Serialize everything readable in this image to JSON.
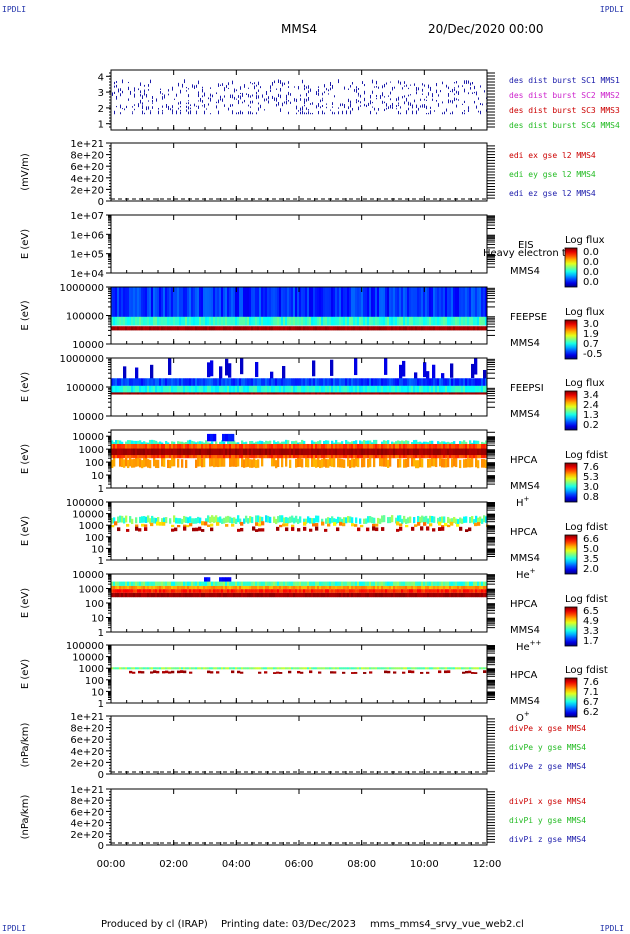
{
  "header": {
    "corner_label": "IPDLI",
    "spacecraft": "MMS4",
    "date": "20/Dec/2020 00:00"
  },
  "footer": {
    "produced_by": "Produced by cl (IRAP)",
    "printing_date": "Printing date: 03/Dec/2023",
    "filename": "mms_mms4_srvy_vue_web2.cl"
  },
  "time_axis": {
    "range_hours": [
      0,
      12
    ],
    "ticks": [
      {
        "hour": 0,
        "label": "00:00"
      },
      {
        "hour": 2,
        "label": "02:00"
      },
      {
        "hour": 4,
        "label": "04:00"
      },
      {
        "hour": 6,
        "label": "06:00"
      },
      {
        "hour": 8,
        "label": "08:00"
      },
      {
        "hour": 10,
        "label": "10:00"
      },
      {
        "hour": 12,
        "label": "12:00"
      }
    ]
  },
  "colors": {
    "mms1": "#1a1aaa",
    "mms2": "#cc22cc",
    "mms3": "#cc0000",
    "mms4": "#22bb22",
    "x": "#cc0000",
    "y": "#22bb22",
    "z": "#1a1aaa"
  },
  "chart_data": [
    {
      "type": "scatter",
      "panel": "burst",
      "ylabel": "",
      "yticks": [
        "1",
        "2",
        "3",
        "4"
      ],
      "ylim": [
        0.6,
        4.4
      ],
      "legend": [
        {
          "text": "des dist burst SC1 MMS1",
          "color": "mms1"
        },
        {
          "text": "des dist burst SC2 MMS2",
          "color": "mms2"
        },
        {
          "text": "des dist burst SC3 MMS3",
          "color": "mms3"
        },
        {
          "text": "des dist burst SC4 MMS4",
          "color": "mms4"
        }
      ]
    },
    {
      "type": "line",
      "panel": "edi-e",
      "ylabel": "(mV/m)",
      "yticks": [
        "0",
        "2e+20",
        "4e+20",
        "6e+20",
        "8e+20",
        "1e+21"
      ],
      "ylim": [
        0,
        1e+21
      ],
      "legend": [
        {
          "text": "edi ex gse l2 MMS4",
          "color": "x"
        },
        {
          "text": "edi ey gse l2 MMS4",
          "color": "y"
        },
        {
          "text": "edi ez gse l2 MMS4",
          "color": "z"
        }
      ]
    },
    {
      "type": "heatmap",
      "panel": "eis",
      "ylabel": "E (eV)",
      "yscale": "log",
      "yticks": [
        "1e+04",
        "1e+05",
        "1e+06",
        "1e+07"
      ],
      "ylim": [
        10000,
        10000000
      ],
      "instrument_lines": [
        "EIS",
        "MMS4"
      ],
      "overlay_text": "Heavy electron tof",
      "colorbar_title": "Log flux",
      "colorbar_ticks": [
        "0.0",
        "0.0",
        "0.0",
        "0.0"
      ]
    },
    {
      "type": "heatmap",
      "panel": "feepse",
      "ylabel": "E (eV)",
      "yscale": "log",
      "yticks": [
        "10000",
        "100000",
        "1000000"
      ],
      "ylim": [
        10000,
        1000000
      ],
      "instrument_lines": [
        "FEEPSE",
        "MMS4"
      ],
      "colorbar_title": "Log flux",
      "colorbar_ticks": [
        "3.0",
        "1.9",
        "0.7",
        "-0.5"
      ]
    },
    {
      "type": "heatmap",
      "panel": "feepsi",
      "ylabel": "E (eV)",
      "yscale": "log",
      "yticks": [
        "10000",
        "100000",
        "1000000"
      ],
      "ylim": [
        10000,
        1000000
      ],
      "instrument_lines": [
        "FEEPSI",
        "MMS4"
      ],
      "colorbar_title": "Log flux",
      "colorbar_ticks": [
        "3.4",
        "2.4",
        "1.3",
        "0.2"
      ]
    },
    {
      "type": "heatmap",
      "panel": "hpca-h",
      "ylabel": "E (eV)",
      "yscale": "log",
      "yticks": [
        "1",
        "10",
        "100",
        "1000",
        "10000"
      ],
      "ylim": [
        1,
        30000
      ],
      "instrument_lines": [
        "HPCA",
        "MMS4"
      ],
      "species": "H",
      "species_sup": "+",
      "colorbar_title": "Log fdist",
      "colorbar_ticks": [
        "7.6",
        "5.3",
        "3.0",
        "0.8"
      ]
    },
    {
      "type": "heatmap",
      "panel": "hpca-he",
      "ylabel": "E (eV)",
      "yscale": "log",
      "yticks": [
        "1",
        "10",
        "100",
        "1000",
        "10000",
        "100000"
      ],
      "ylim": [
        1,
        100000
      ],
      "instrument_lines": [
        "HPCA",
        "MMS4"
      ],
      "species": "He",
      "species_sup": "+",
      "colorbar_title": "Log fdist",
      "colorbar_ticks": [
        "6.6",
        "5.0",
        "3.5",
        "2.0"
      ]
    },
    {
      "type": "heatmap",
      "panel": "hpca-he2",
      "ylabel": "E (eV)",
      "yscale": "log",
      "yticks": [
        "1",
        "10",
        "100",
        "1000",
        "10000"
      ],
      "ylim": [
        1,
        10000
      ],
      "instrument_lines": [
        "HPCA",
        "MMS4"
      ],
      "species": "He",
      "species_sup": "++",
      "colorbar_title": "Log fdist",
      "colorbar_ticks": [
        "6.5",
        "4.9",
        "3.3",
        "1.7"
      ]
    },
    {
      "type": "heatmap",
      "panel": "hpca-o",
      "ylabel": "E (eV)",
      "yscale": "log",
      "yticks": [
        "1",
        "10",
        "100",
        "1000",
        "10000",
        "100000"
      ],
      "ylim": [
        1,
        100000
      ],
      "instrument_lines": [
        "HPCA",
        "MMS4"
      ],
      "species": "O",
      "species_sup": "+",
      "colorbar_title": "Log fdist",
      "colorbar_ticks": [
        "7.6",
        "7.1",
        "6.7",
        "6.2"
      ]
    },
    {
      "type": "line",
      "panel": "divpe",
      "ylabel": "(nPa/km)",
      "yticks": [
        "0",
        "2e+20",
        "4e+20",
        "6e+20",
        "8e+20",
        "1e+21"
      ],
      "ylim": [
        0,
        1e+21
      ],
      "legend": [
        {
          "text": "divPe x gse MMS4",
          "color": "x"
        },
        {
          "text": "divPe y gse MMS4",
          "color": "y"
        },
        {
          "text": "divPe z gse MMS4",
          "color": "z"
        }
      ]
    },
    {
      "type": "line",
      "panel": "divpi",
      "ylabel": "(nPa/km)",
      "yticks": [
        "0",
        "2e+20",
        "4e+20",
        "6e+20",
        "8e+20",
        "1e+21"
      ],
      "ylim": [
        0,
        1e+21
      ],
      "legend": [
        {
          "text": "divPi x gse MMS4",
          "color": "x"
        },
        {
          "text": "divPi y gse MMS4",
          "color": "y"
        },
        {
          "text": "divPi z gse MMS4",
          "color": "z"
        }
      ]
    }
  ]
}
